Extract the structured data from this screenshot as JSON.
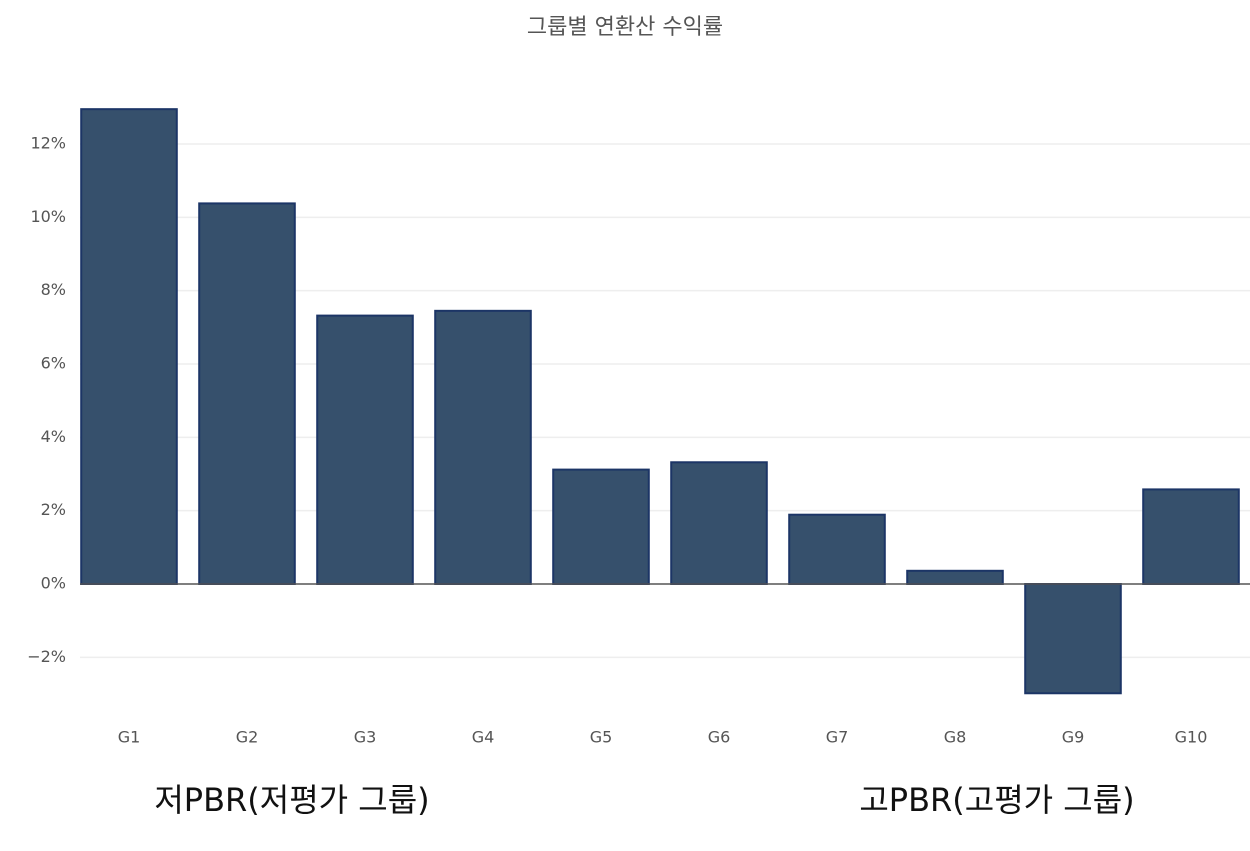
{
  "chart_data": {
    "type": "bar",
    "title": "그룹별 연환산 수익률",
    "categories": [
      "G1",
      "G2",
      "G3",
      "G4",
      "G5",
      "G6",
      "G7",
      "G8",
      "G9",
      "G10"
    ],
    "values": [
      12.95,
      10.38,
      7.32,
      7.45,
      3.12,
      3.32,
      1.89,
      0.36,
      -2.98,
      2.58
    ],
    "color": "#36506c",
    "edge_color": "#1c3566",
    "ylim": [
      -3.3,
      13.2
    ],
    "yticks": [
      {
        "value": -2,
        "label": "−2%"
      },
      {
        "value": 0,
        "label": "0%"
      },
      {
        "value": 2,
        "label": "2%"
      },
      {
        "value": 4,
        "label": "4%"
      },
      {
        "value": 6,
        "label": "6%"
      },
      {
        "value": 8,
        "label": "8%"
      },
      {
        "value": 10,
        "label": "10%"
      },
      {
        "value": 12,
        "label": "12%"
      }
    ],
    "grid": true,
    "annotations": [
      "저PBR(저평가 그룹)",
      "고PBR(고평가 그룹)"
    ]
  }
}
